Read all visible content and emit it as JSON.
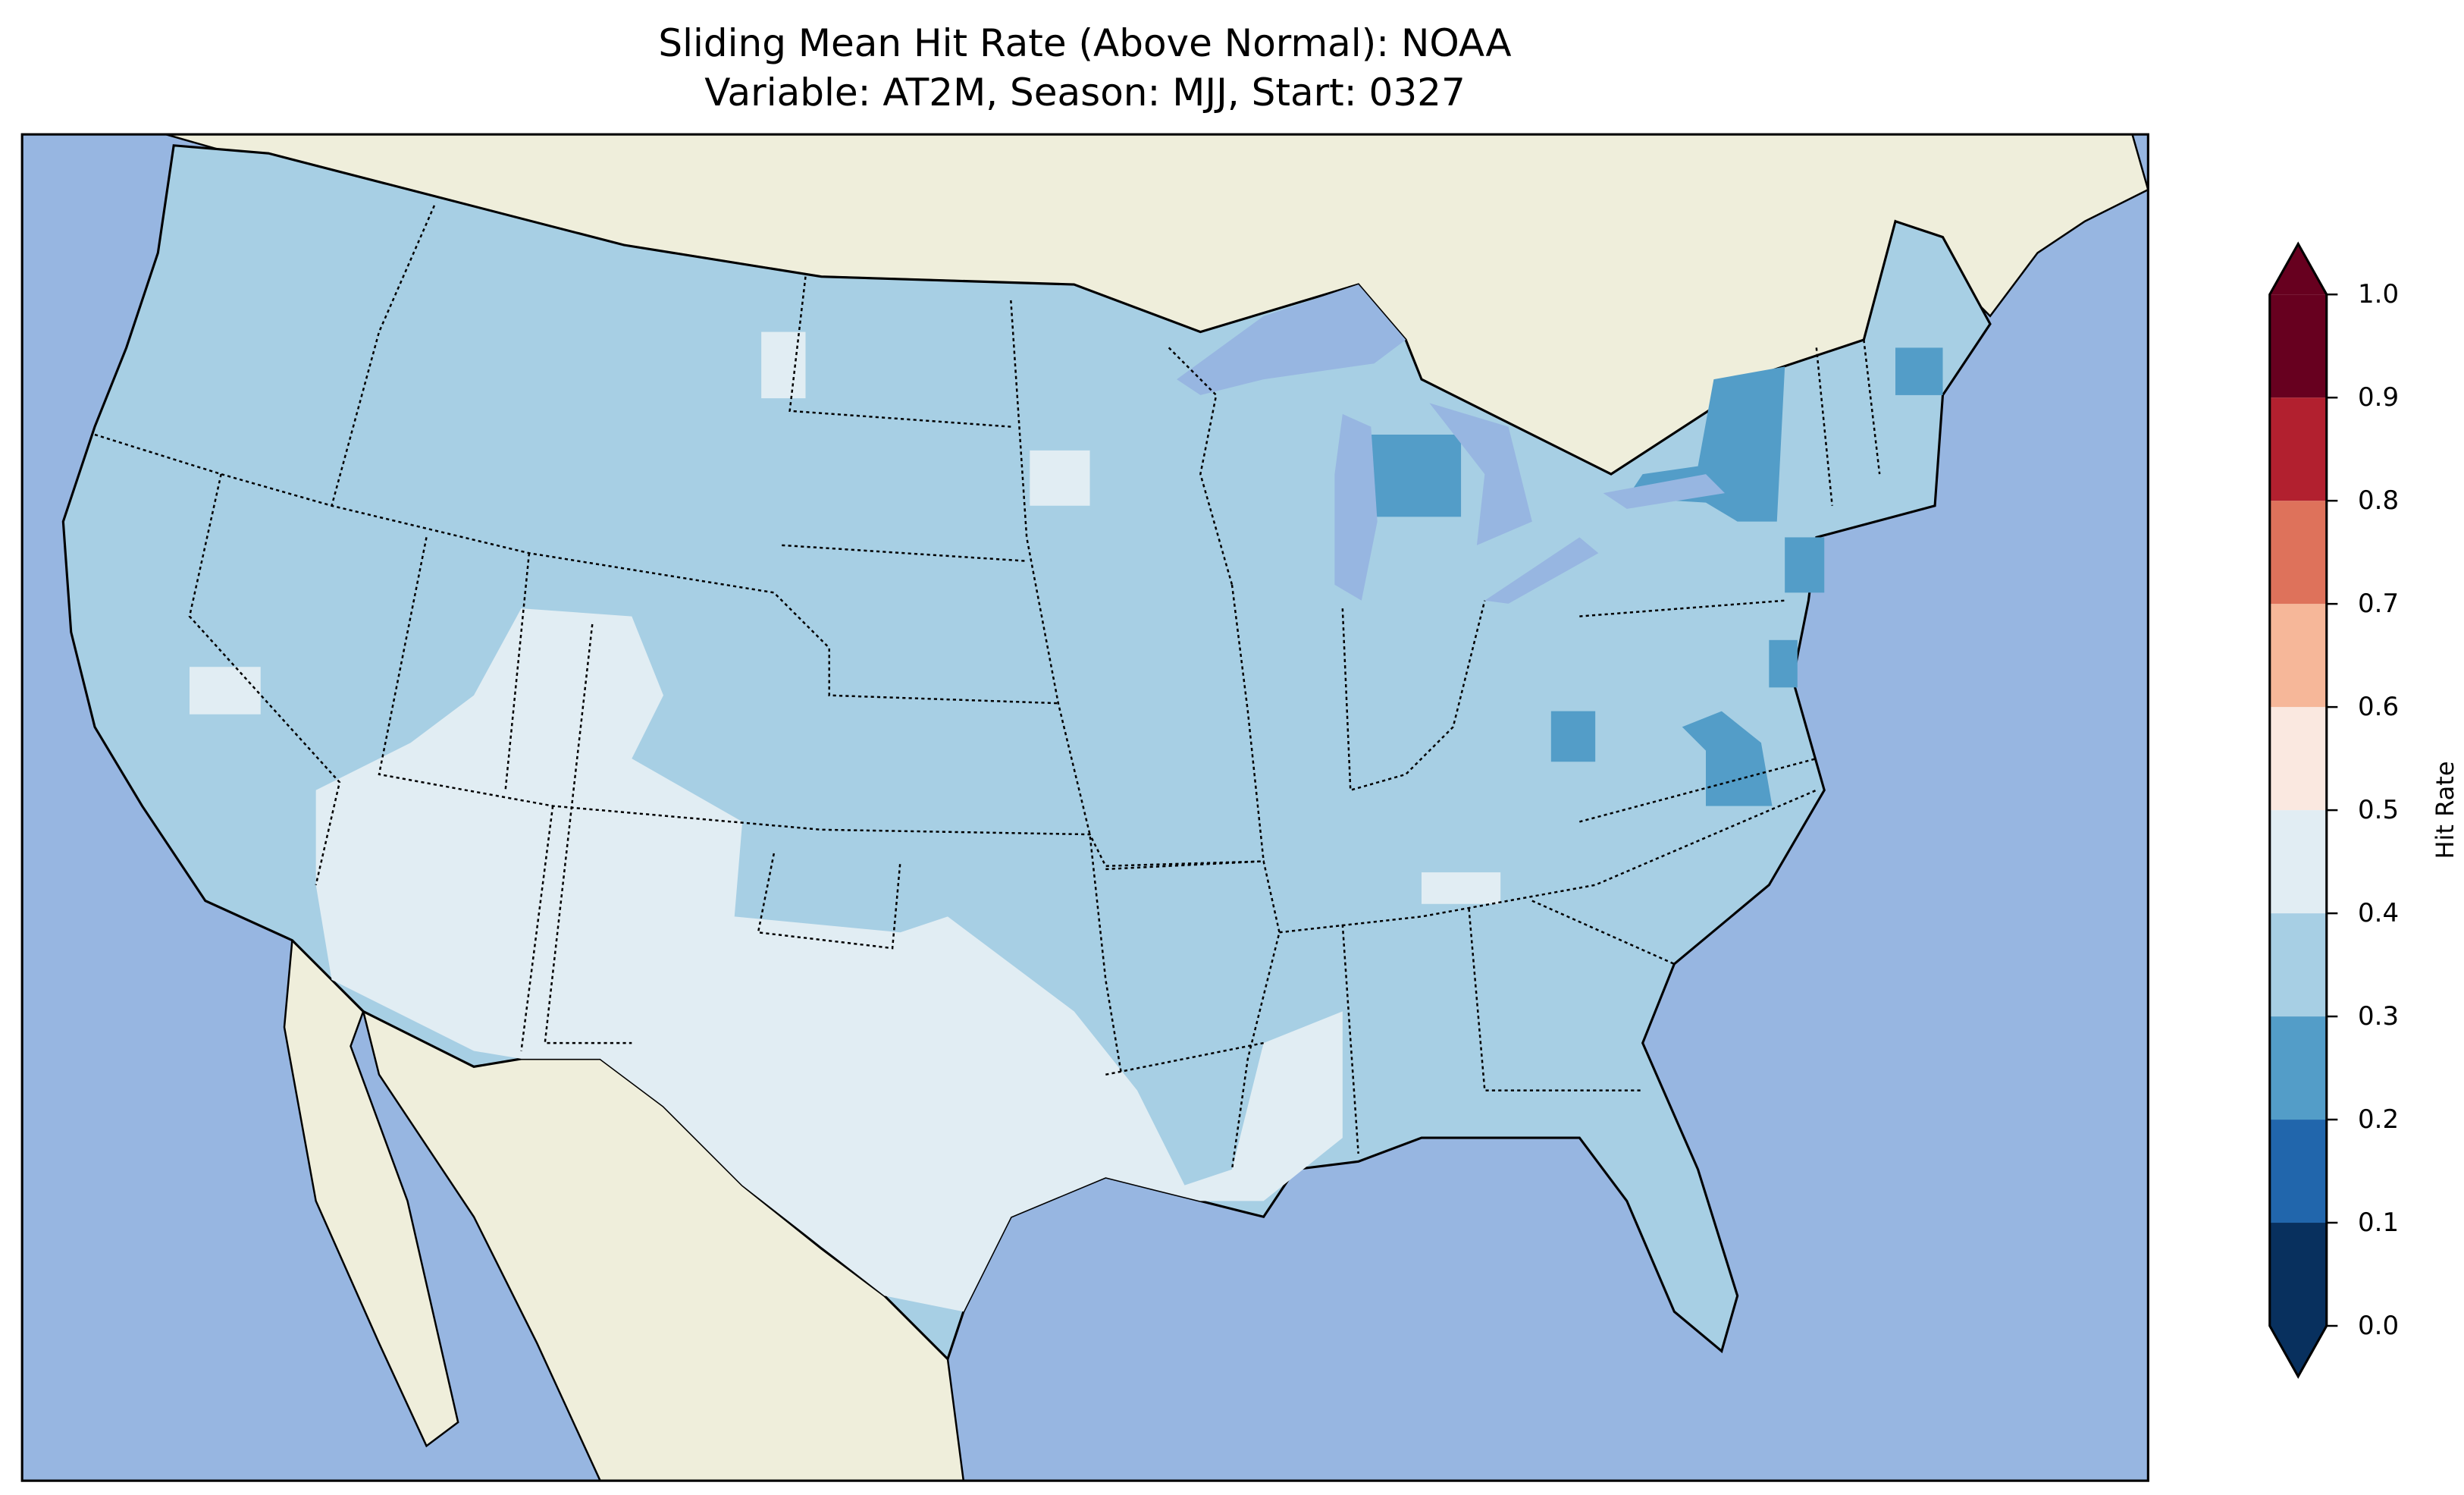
{
  "title": {
    "line1": "Sliding Mean Hit Rate (Above Normal): NOAA",
    "line2": "Variable: AT2M, Season: MJJ, Start: 0327"
  },
  "colors": {
    "ocean": "#97b6e1",
    "land": "#efeedb",
    "level_0_0.1": "#08305e",
    "level_0.1_0.2": "#2166ac",
    "level_0.2_0.3": "#539dc8",
    "level_0.3_0.4": "#a7cfe4",
    "level_0.4_0.5": "#e1edf3",
    "level_0.5_0.6": "#fae8e0",
    "level_0.6_0.7": "#f6b799",
    "level_0.7_0.8": "#de725b",
    "level_0.8_0.9": "#b2202f",
    "level_0.9_1.0": "#67001f"
  },
  "chart_data": {
    "type": "heatmap",
    "title": "Sliding Mean Hit Rate (Above Normal): NOAA\nVariable: AT2M, Season: MJJ, Start: 0327",
    "region": "Contiguous United States",
    "colorbar": {
      "label": "Hit Rate",
      "range": [
        0.0,
        1.0
      ],
      "extend": "both",
      "boundaries": [
        0.0,
        0.1,
        0.2,
        0.3,
        0.4,
        0.5,
        0.6,
        0.7,
        0.8,
        0.9,
        1.0
      ],
      "tick_labels": [
        "0.0",
        "0.1",
        "0.2",
        "0.3",
        "0.4",
        "0.5",
        "0.6",
        "0.7",
        "0.8",
        "0.9",
        "1.0"
      ]
    },
    "regions_summary": [
      {
        "area": "Most of CONUS",
        "range": [
          0.3,
          0.4
        ]
      },
      {
        "area": "Southwest, New Mexico, Texas, lower Mississippi",
        "range": [
          0.4,
          0.5
        ]
      },
      {
        "area": "Michigan, New York, Virginia, West Virginia, NYC, coastal Maine",
        "range": [
          0.2,
          0.3
        ]
      }
    ]
  }
}
